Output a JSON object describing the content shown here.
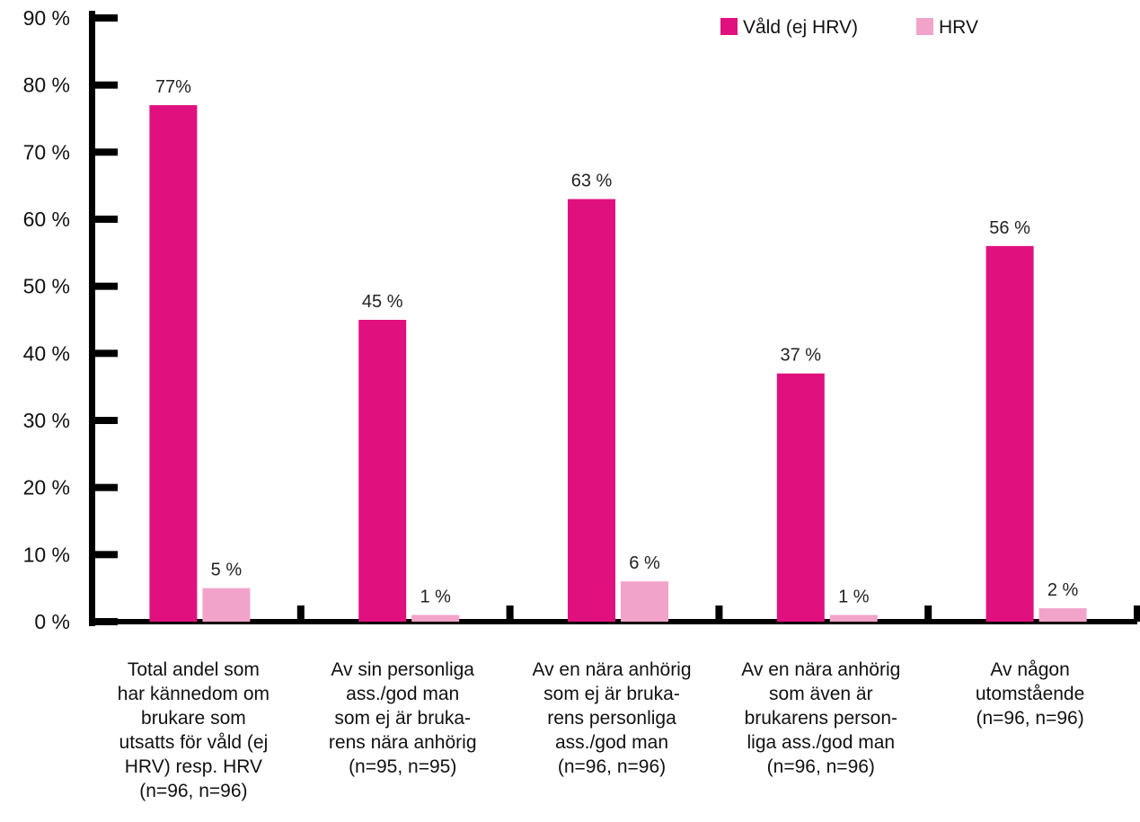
{
  "chart_data": {
    "type": "bar",
    "categories": [
      [
        "Total andel som",
        "har kännedom om",
        "brukare som",
        "utsatts för våld (ej",
        "HRV) resp. HRV",
        "(n=96, n=96)"
      ],
      [
        "Av sin personliga",
        "ass./god man",
        "som ej är bruka-",
        "rens nära anhörig",
        "(n=95, n=95)"
      ],
      [
        "Av en nära anhörig",
        "som ej är bruka-",
        "rens personliga",
        "ass./god man",
        "(n=96, n=96)"
      ],
      [
        "Av en nära anhörig",
        "som även är",
        "brukarens person-",
        "liga ass./god man",
        "(n=96, n=96)"
      ],
      [
        "Av någon",
        "utomstående",
        "(n=96, n=96)"
      ]
    ],
    "series": [
      {
        "name": "Våld (ej HRV)",
        "values": [
          77,
          45,
          63,
          37,
          56
        ],
        "labels": [
          "77%",
          "45 %",
          "63 %",
          "37 %",
          "56 %"
        ],
        "color": "#e0117f"
      },
      {
        "name": "HRV",
        "values": [
          5,
          1,
          6,
          1,
          2
        ],
        "labels": [
          "5 %",
          "1 %",
          "6 %",
          "1 %",
          "2 %"
        ],
        "color": "#f2a3c9"
      }
    ],
    "yticks": [
      "0 %",
      "10 %",
      "20 %",
      "30 %",
      "40 %",
      "50 %",
      "60 %",
      "70 %",
      "80 %",
      "90 %"
    ],
    "ylim": [
      0,
      90
    ],
    "legend": "top-right",
    "grid": false
  }
}
